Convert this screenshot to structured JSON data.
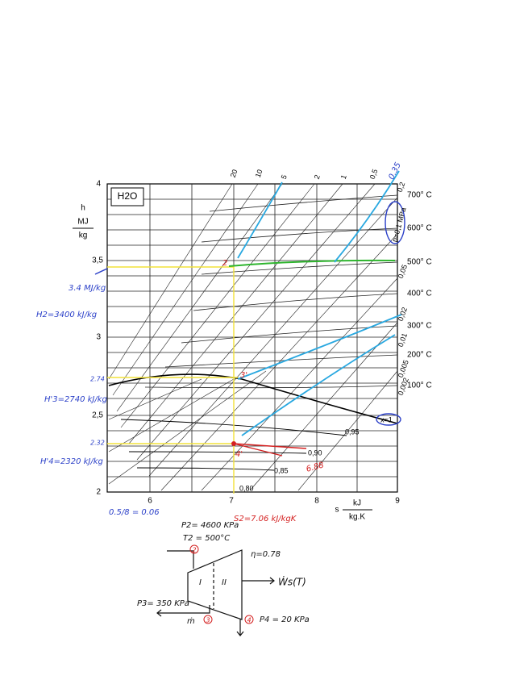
{
  "chart": {
    "title": "H2O",
    "y_axis": {
      "symbol": "h",
      "unit_top": "MJ",
      "unit_bottom": "kg",
      "ticks": [
        "4",
        "3,5",
        "3",
        "2,5",
        "2"
      ]
    },
    "x_axis": {
      "symbol": "s",
      "unit_top": "kJ",
      "unit_bottom": "kg.K",
      "ticks": [
        "6",
        "7",
        "8",
        "9"
      ]
    },
    "pressure_top": [
      "20",
      "10",
      "5",
      "2",
      "1",
      "0,5",
      "0,2"
    ],
    "pressure_right": [
      "p=0,1 MPa",
      "0,05",
      "0,02",
      "0,01",
      "0,005",
      "0,002"
    ],
    "temperatures": [
      "700° C",
      "600° C",
      "500° C",
      "400° C",
      "300° C",
      "200° C",
      "100° C"
    ],
    "quality": [
      "x=1",
      "0,95",
      "0,90",
      "0,85",
      "0,80"
    ]
  },
  "annotations": {
    "h2_mj": "3.4 MJ/kg",
    "h2": "H2=3400 kJ/kg",
    "h3_tick": "2.74",
    "h3": "H'3=2740 kJ/kg",
    "h4_tick": "2.32",
    "h4": "H'4=2320 kJ/kg",
    "scale_note": "0.5/8 = 0.06",
    "s2": "S2=7.06 kJ/kgK",
    "top_blue": "0.35",
    "point_2": "2",
    "point_3": "3'",
    "point_4": "4'",
    "red_note": "6.88"
  },
  "turbine": {
    "p2": "P2= 4600 KPa",
    "t2": "T2 = 500°C",
    "eta": "η=0.78",
    "stage_1": "I",
    "stage_2": "II",
    "work": "Ẇs(T)",
    "p3": "P3= 350 KPa",
    "mdot": "ṁ",
    "p4": "P4 = 20 KPa",
    "state_2": "2",
    "state_3": "3",
    "state_4": "4"
  }
}
